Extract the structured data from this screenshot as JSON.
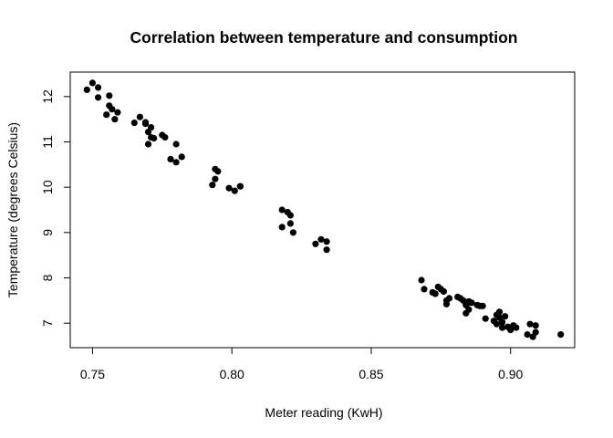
{
  "chart_data": {
    "type": "scatter",
    "title": "Correlation between temperature and consumption",
    "xlabel": "Meter reading (KwH)",
    "ylabel": "Temperature (degrees Celsius)",
    "xlim": [
      0.742,
      0.923
    ],
    "ylim": [
      6.46,
      12.54
    ],
    "xticks": [
      0.75,
      0.8,
      0.85,
      0.9
    ],
    "xtick_labels": [
      "0.75",
      "0.80",
      "0.85",
      "0.90"
    ],
    "yticks": [
      7,
      8,
      9,
      10,
      11,
      12
    ],
    "ytick_labels": [
      "7",
      "8",
      "9",
      "10",
      "11",
      "12"
    ],
    "grid": false,
    "point_color": "#000000",
    "x": [
      0.748,
      0.75,
      0.752,
      0.752,
      0.756,
      0.755,
      0.756,
      0.757,
      0.758,
      0.759,
      0.765,
      0.767,
      0.769,
      0.77,
      0.769,
      0.771,
      0.771,
      0.77,
      0.772,
      0.775,
      0.776,
      0.778,
      0.78,
      0.78,
      0.782,
      0.793,
      0.794,
      0.795,
      0.794,
      0.799,
      0.801,
      0.803,
      0.803,
      0.818,
      0.818,
      0.82,
      0.821,
      0.821,
      0.822,
      0.83,
      0.832,
      0.834,
      0.834,
      0.868,
      0.869,
      0.872,
      0.873,
      0.874,
      0.875,
      0.876,
      0.877,
      0.877,
      0.878,
      0.881,
      0.882,
      0.883,
      0.884,
      0.885,
      0.884,
      0.885,
      0.885,
      0.886,
      0.888,
      0.889,
      0.89,
      0.891,
      0.894,
      0.895,
      0.895,
      0.896,
      0.896,
      0.897,
      0.897,
      0.898,
      0.899,
      0.9,
      0.901,
      0.902,
      0.906,
      0.907,
      0.908,
      0.909,
      0.909,
      0.918
    ],
    "y": [
      12.15,
      12.3,
      12.2,
      11.98,
      12.02,
      11.6,
      11.8,
      11.72,
      11.5,
      11.65,
      11.42,
      11.55,
      11.4,
      11.22,
      11.43,
      11.32,
      11.1,
      10.95,
      11.08,
      11.15,
      11.1,
      10.62,
      10.95,
      10.55,
      10.67,
      10.05,
      10.4,
      10.35,
      10.18,
      9.98,
      9.92,
      10.02,
      10.02,
      9.5,
      9.12,
      9.45,
      9.38,
      9.2,
      9.0,
      8.75,
      8.85,
      8.8,
      8.62,
      7.95,
      7.75,
      7.68,
      7.65,
      7.8,
      7.75,
      7.7,
      7.5,
      7.42,
      7.55,
      7.58,
      7.55,
      7.5,
      7.4,
      7.3,
      7.22,
      7.48,
      7.45,
      7.45,
      7.4,
      7.38,
      7.38,
      7.1,
      7.05,
      7.18,
      6.98,
      7.25,
      7.12,
      6.9,
      7.02,
      7.15,
      6.92,
      6.85,
      6.95,
      6.9,
      6.75,
      6.98,
      6.7,
      6.95,
      6.8,
      6.75
    ]
  }
}
